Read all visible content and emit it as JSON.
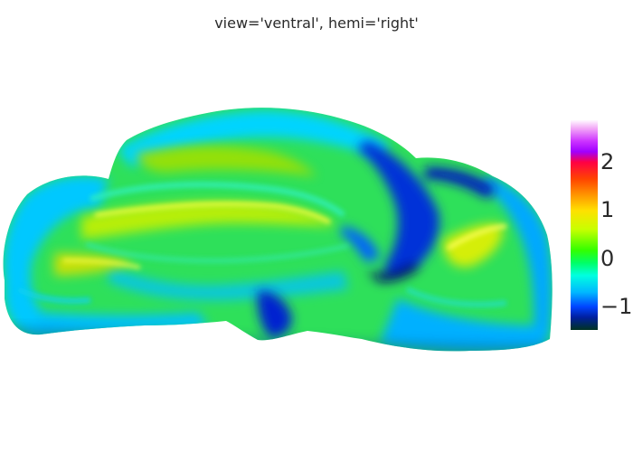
{
  "plot": {
    "title": "view='ventral', hemi='right'"
  },
  "colorbar": {
    "colorscale": "nipy_spectral",
    "ticks": [
      {
        "label": "2",
        "value": 2
      },
      {
        "label": "1",
        "value": 1
      },
      {
        "label": "0",
        "value": 0
      },
      {
        "label": "−1",
        "value": -1
      }
    ]
  },
  "surface": {
    "view": "ventral",
    "hemi": "right"
  }
}
